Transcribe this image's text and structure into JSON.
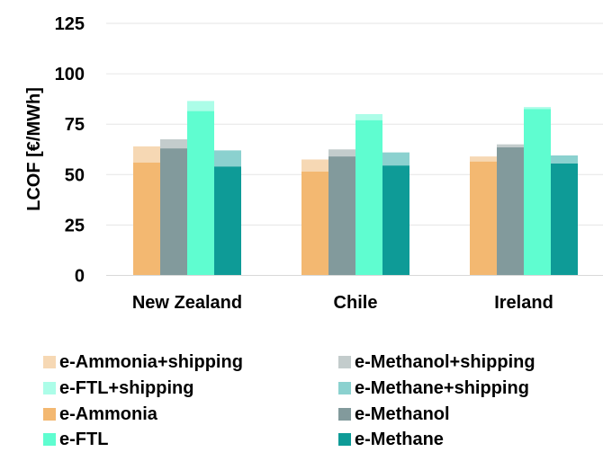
{
  "chart_data": {
    "type": "bar",
    "ylabel": "LCOF [€/MWh]",
    "ylim": [
      0,
      125
    ],
    "yticks": [
      0,
      25,
      50,
      75,
      100,
      125
    ],
    "categories": [
      "New Zealand",
      "Chile",
      "Ireland"
    ],
    "grid": true,
    "legend_position": "bottom",
    "series": [
      {
        "name": "e-Ammonia",
        "key": "ammonia",
        "color": "#f3b871",
        "values": [
          56,
          51.5,
          56.5
        ],
        "shipping_total": [
          64,
          57.5,
          59
        ]
      },
      {
        "name": "e-Methanol",
        "key": "methanol",
        "color": "#829a9c",
        "values": [
          63,
          59,
          63.5
        ],
        "shipping_total": [
          67.5,
          62.5,
          65
        ]
      },
      {
        "name": "e-FTL",
        "key": "ftl",
        "color": "#5ffdd0",
        "values": [
          81.5,
          77,
          82.5
        ],
        "shipping_total": [
          86.5,
          80,
          83.5
        ]
      },
      {
        "name": "e-Methane",
        "key": "methane",
        "color": "#0e9b97",
        "values": [
          54,
          54.5,
          55.5
        ],
        "shipping_total": [
          62,
          61,
          59.5
        ]
      }
    ],
    "shipping_colors": {
      "ammonia": "#f6d8b4",
      "methanol": "#c3cccc",
      "ftl": "#acfde8",
      "methane": "#8bd1cf"
    },
    "legend": [
      {
        "label": "e-Ammonia+shipping",
        "color": "#f6d8b4"
      },
      {
        "label": "e-Methanol+shipping",
        "color": "#c3cccc"
      },
      {
        "label": "e-FTL+shipping",
        "color": "#acfde8"
      },
      {
        "label": "e-Methane+shipping",
        "color": "#8bd1cf"
      },
      {
        "label": "e-Ammonia",
        "color": "#f3b871"
      },
      {
        "label": "e-Methanol",
        "color": "#829a9c"
      },
      {
        "label": "e-FTL",
        "color": "#5ffdd0"
      },
      {
        "label": "e-Methane",
        "color": "#0e9b97"
      }
    ]
  }
}
